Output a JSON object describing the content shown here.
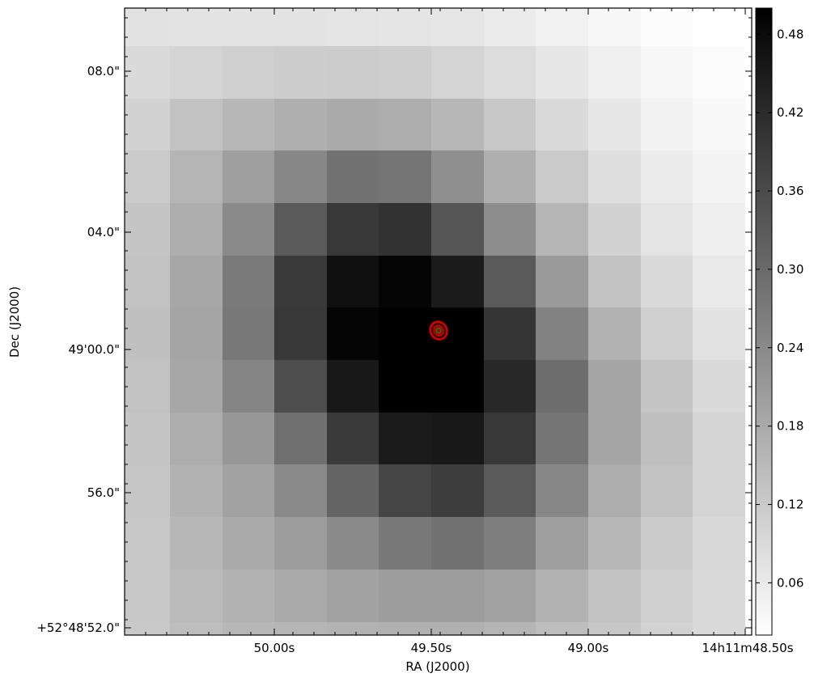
{
  "chart_data": {
    "type": "heatmap",
    "title": "",
    "xlabel": "RA (J2000)",
    "ylabel": "Dec (J2000)",
    "x_ticks": [
      "50.00s",
      "49.50s",
      "49.00s",
      "14h11m48.50s"
    ],
    "y_ticks": [
      "08.0\"",
      "04.0\"",
      "49'00.0\"",
      "56.0\"",
      "+52°48'52.0\""
    ],
    "colorbar": {
      "ticks": [
        "0.06",
        "0.12",
        "0.18",
        "0.24",
        "0.30",
        "0.36",
        "0.42",
        "0.48"
      ],
      "range": [
        0.02,
        0.5
      ],
      "colormap": "gray_r"
    },
    "grid": false,
    "values": [
      [
        0.075,
        0.073,
        0.072,
        0.072,
        0.071,
        0.069,
        0.067,
        0.058,
        0.047,
        0.035,
        0.025,
        0.02
      ],
      [
        0.09,
        0.1,
        0.11,
        0.115,
        0.116,
        0.112,
        0.1,
        0.085,
        0.065,
        0.048,
        0.035,
        0.025
      ],
      [
        0.105,
        0.135,
        0.155,
        0.17,
        0.18,
        0.175,
        0.155,
        0.125,
        0.09,
        0.065,
        0.045,
        0.032
      ],
      [
        0.12,
        0.16,
        0.2,
        0.245,
        0.285,
        0.28,
        0.23,
        0.17,
        0.12,
        0.08,
        0.055,
        0.04
      ],
      [
        0.13,
        0.175,
        0.24,
        0.33,
        0.395,
        0.405,
        0.34,
        0.235,
        0.16,
        0.105,
        0.07,
        0.05
      ],
      [
        0.135,
        0.185,
        0.27,
        0.39,
        0.47,
        0.49,
        0.45,
        0.33,
        0.21,
        0.135,
        0.09,
        0.062
      ],
      [
        0.138,
        0.19,
        0.275,
        0.395,
        0.49,
        0.5,
        0.5,
        0.4,
        0.255,
        0.165,
        0.11,
        0.075
      ],
      [
        0.135,
        0.185,
        0.25,
        0.355,
        0.455,
        0.5,
        0.5,
        0.425,
        0.295,
        0.19,
        0.13,
        0.09
      ],
      [
        0.13,
        0.175,
        0.215,
        0.29,
        0.39,
        0.45,
        0.455,
        0.395,
        0.28,
        0.19,
        0.14,
        0.1
      ],
      [
        0.128,
        0.165,
        0.195,
        0.24,
        0.31,
        0.37,
        0.385,
        0.33,
        0.245,
        0.175,
        0.135,
        0.1
      ],
      [
        0.125,
        0.155,
        0.18,
        0.205,
        0.24,
        0.275,
        0.285,
        0.26,
        0.2,
        0.155,
        0.12,
        0.095
      ],
      [
        0.125,
        0.15,
        0.165,
        0.18,
        0.195,
        0.205,
        0.205,
        0.195,
        0.165,
        0.135,
        0.11,
        0.09
      ],
      [
        0.122,
        0.145,
        0.155,
        0.16,
        0.165,
        0.168,
        0.168,
        0.16,
        0.145,
        0.125,
        0.105,
        0.09
      ]
    ],
    "source_marker": {
      "x_index": 6.14,
      "y_index": 6.44,
      "outer_color": "#cc0000",
      "inner_color": "#1a7a1a"
    }
  }
}
